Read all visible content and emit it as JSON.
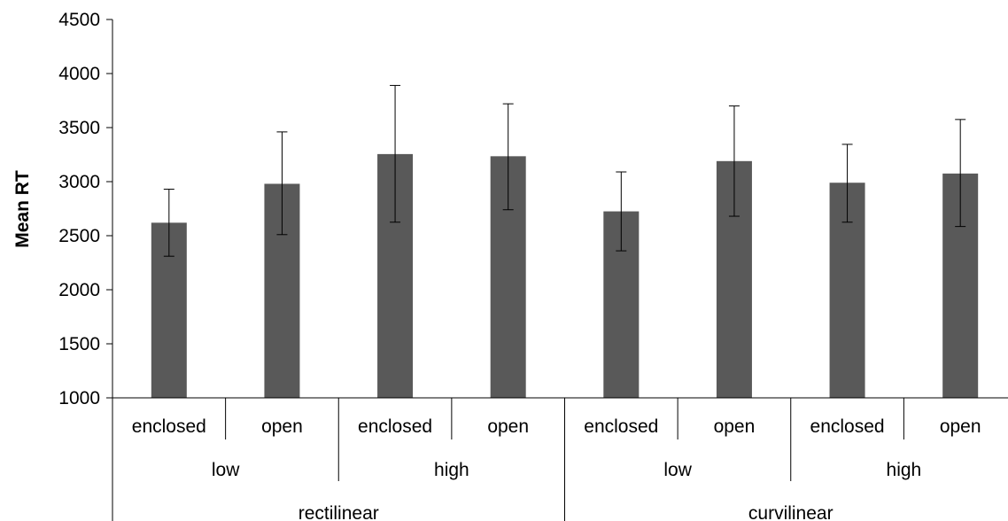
{
  "chart_data": {
    "type": "bar",
    "ylabel": "Mean RT",
    "ylim": [
      1000,
      4500
    ],
    "yticks": [
      1000,
      1500,
      2000,
      2500,
      3000,
      3500,
      4000,
      4500
    ],
    "bar_color": "#595959",
    "categories": [
      {
        "level1": "enclosed",
        "level2": "low",
        "level3": "rectilinear",
        "value": 2620,
        "err_low": 2310,
        "err_high": 2930
      },
      {
        "level1": "open",
        "level2": "low",
        "level3": "rectilinear",
        "value": 2980,
        "err_low": 2510,
        "err_high": 3460
      },
      {
        "level1": "enclosed",
        "level2": "high",
        "level3": "rectilinear",
        "value": 3255,
        "err_low": 2625,
        "err_high": 3890
      },
      {
        "level1": "open",
        "level2": "high",
        "level3": "rectilinear",
        "value": 3235,
        "err_low": 2740,
        "err_high": 3720
      },
      {
        "level1": "enclosed",
        "level2": "low",
        "level3": "curvilinear",
        "value": 2725,
        "err_low": 2360,
        "err_high": 3090
      },
      {
        "level1": "open",
        "level2": "low",
        "level3": "curvilinear",
        "value": 3190,
        "err_low": 2680,
        "err_high": 3700
      },
      {
        "level1": "enclosed",
        "level2": "high",
        "level3": "curvilinear",
        "value": 2990,
        "err_low": 2625,
        "err_high": 3345
      },
      {
        "level1": "open",
        "level2": "high",
        "level3": "curvilinear",
        "value": 3075,
        "err_low": 2585,
        "err_high": 3575
      }
    ],
    "groups_level2": [
      {
        "label": "low",
        "span": [
          0,
          1
        ]
      },
      {
        "label": "high",
        "span": [
          2,
          3
        ]
      },
      {
        "label": "low",
        "span": [
          4,
          5
        ]
      },
      {
        "label": "high",
        "span": [
          6,
          7
        ]
      }
    ],
    "groups_level3": [
      {
        "label": "rectilinear",
        "span": [
          0,
          3
        ]
      },
      {
        "label": "curvilinear",
        "span": [
          4,
          7
        ]
      }
    ]
  }
}
